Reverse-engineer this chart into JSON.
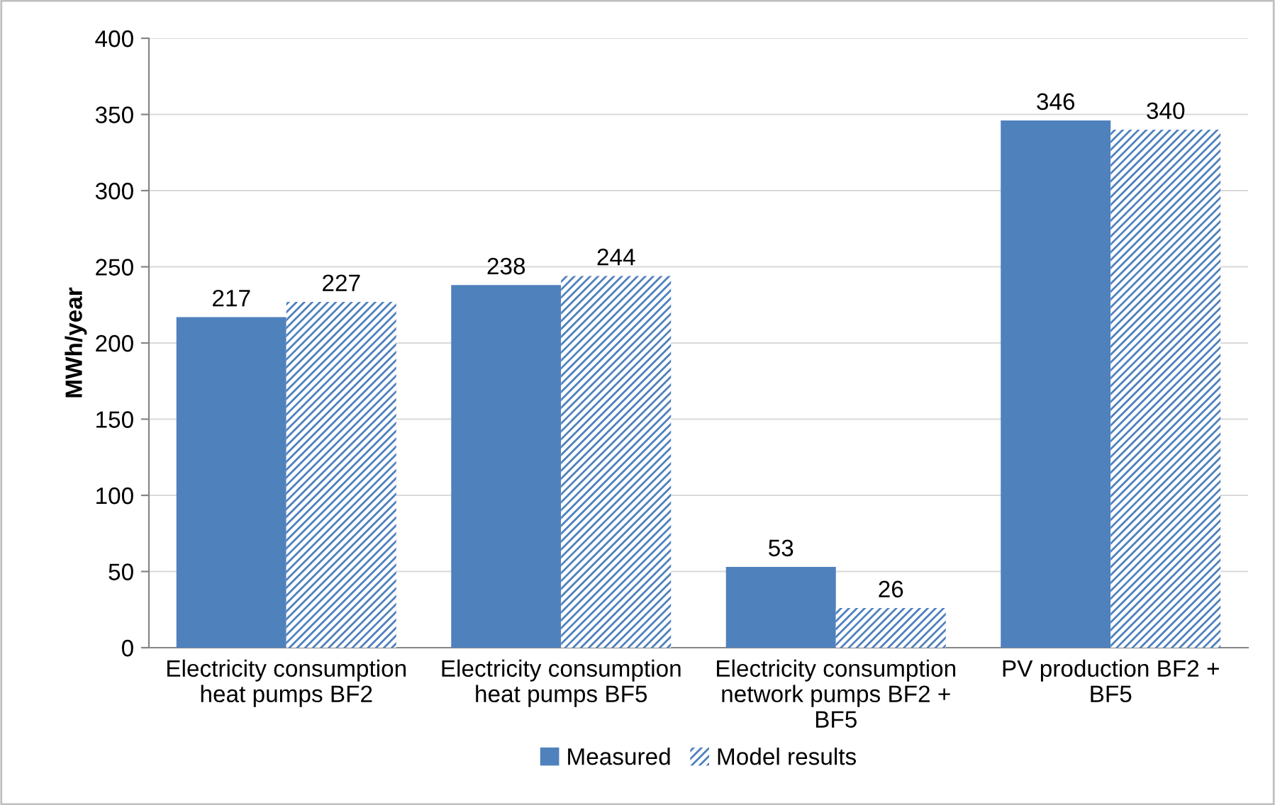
{
  "chart_data": {
    "type": "bar",
    "ylabel": "MWh/year",
    "categories": [
      "Electricity consumption\nheat pumps BF2",
      "Electricity consumption\nheat pumps BF5",
      "Electricity consumption\nnetwork pumps BF2 +\nBF5",
      "PV production BF2 +\nBF5"
    ],
    "series": [
      {
        "name": "Measured",
        "color": "#4f81bd",
        "values": [
          217,
          238,
          53,
          346
        ]
      },
      {
        "name": "Model results",
        "color": "#4f81bd",
        "values": [
          227,
          244,
          26,
          340
        ]
      }
    ],
    "ylim": [
      0,
      400
    ],
    "yticks": [
      0,
      50,
      100,
      150,
      200,
      250,
      300,
      350,
      400
    ],
    "grid": "y",
    "legend": "bottom",
    "data_labels": true
  }
}
